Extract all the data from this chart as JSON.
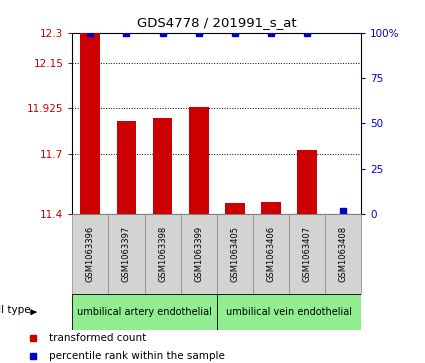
{
  "title": "GDS4778 / 201991_s_at",
  "samples": [
    "GSM1063396",
    "GSM1063397",
    "GSM1063398",
    "GSM1063399",
    "GSM1063405",
    "GSM1063406",
    "GSM1063407",
    "GSM1063408"
  ],
  "bar_values": [
    12.3,
    11.86,
    11.875,
    11.93,
    11.455,
    11.46,
    11.72,
    11.4
  ],
  "percentile_values": [
    100,
    100,
    100,
    100,
    100,
    100,
    100,
    2
  ],
  "y_min": 11.4,
  "y_max": 12.3,
  "y_ticks": [
    11.4,
    11.7,
    11.925,
    12.15,
    12.3
  ],
  "y_tick_labels": [
    "11.4",
    "11.7",
    "11.925",
    "12.15",
    "12.3"
  ],
  "y2_ticks": [
    0,
    25,
    50,
    75,
    100
  ],
  "y2_tick_labels": [
    "0",
    "25",
    "50",
    "75",
    "100%"
  ],
  "bar_color": "#cc0000",
  "dot_color": "#0000cc",
  "bg_color": "#ffffff",
  "cell_type_groups": [
    {
      "label": "umbilical artery endothelial",
      "start": 0,
      "end": 3,
      "color": "#90ee90"
    },
    {
      "label": "umbilical vein endothelial",
      "start": 4,
      "end": 7,
      "color": "#90ee90"
    }
  ],
  "legend_items": [
    {
      "label": "transformed count",
      "color": "#cc0000"
    },
    {
      "label": "percentile rank within the sample",
      "color": "#0000cc"
    }
  ],
  "cell_type_label": "cell type",
  "left_label_color": "#cc0000",
  "right_label_color": "#0000cc",
  "sample_box_color": "#d3d3d3",
  "sample_box_edge": "#888888"
}
